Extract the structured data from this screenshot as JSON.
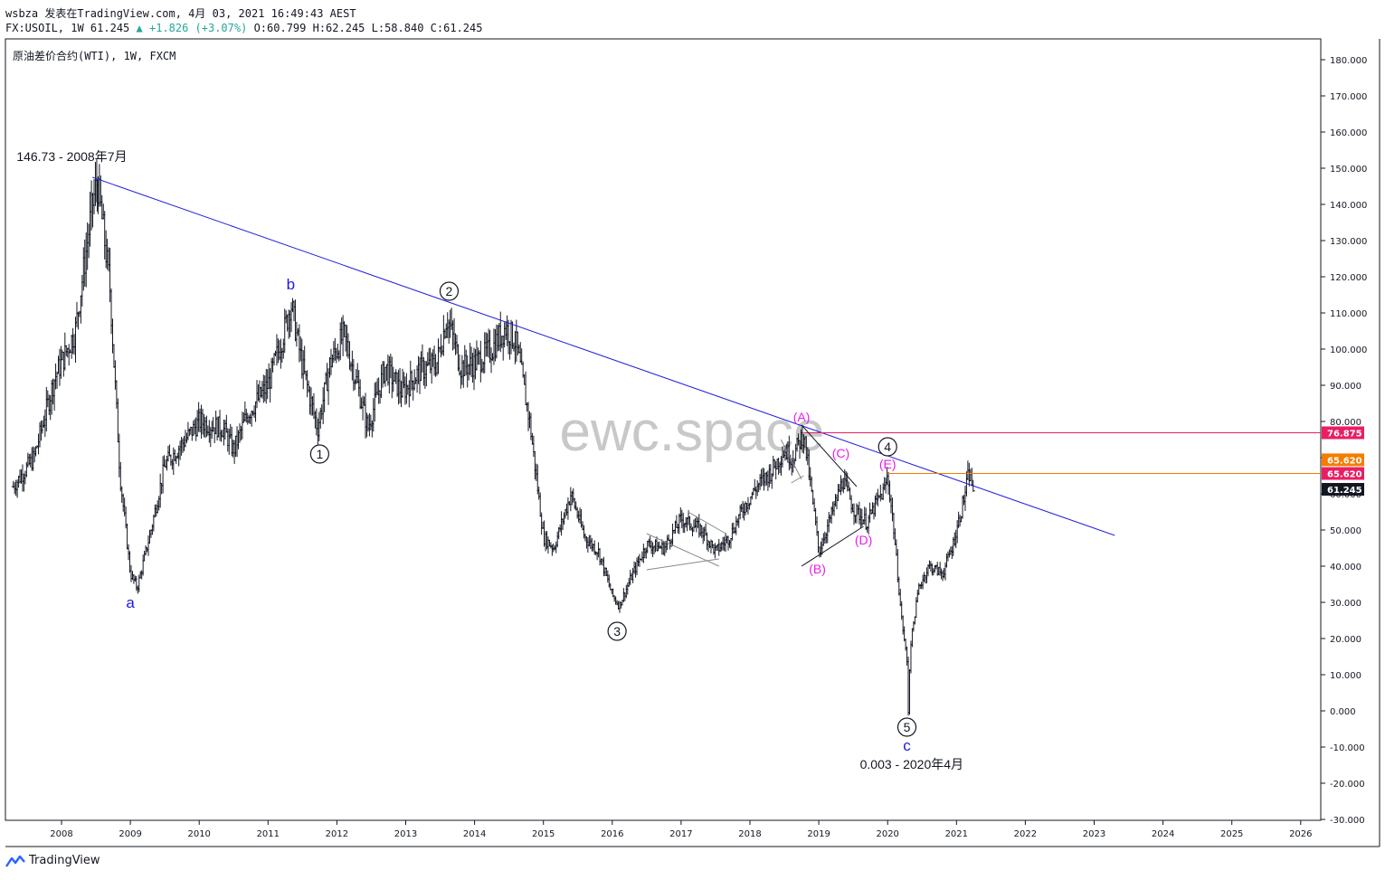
{
  "header": {
    "line1": "wsbza 发表在TradingView.com, 4月 03, 2021 16:49:43 AEST",
    "symbol": "FX:USOIL, 1W 61.245",
    "change": "▲ +1.826 (+3.07%)",
    "ohlc": "O:60.799 H:62.245 L:58.840 C:61.245"
  },
  "legend_title": "原油差价合约(WTI), 1W, FXCM",
  "watermark": "ewc.space",
  "brand": "TradingView",
  "colors": {
    "bar": "#131722",
    "trendline": "#2222dd",
    "wave_blue": "#1b1bd6",
    "wave_magenta": "#e91ee6",
    "hline_magenta": "#c2185b",
    "hline_orange": "#f57c00",
    "grey_lines": "#888888",
    "axis": "#131722"
  },
  "chart_data": {
    "type": "ohlc",
    "title": "原油差价合约(WTI), 1W, FXCM",
    "xlabel": "",
    "ylabel": "",
    "x_tick_labels": [
      "2008",
      "2009",
      "2010",
      "2011",
      "2012",
      "2013",
      "2014",
      "2015",
      "2016",
      "2017",
      "2018",
      "2019",
      "2020",
      "2021",
      "2022",
      "2023",
      "2024",
      "2025",
      "2026"
    ],
    "y_tick_labels": [
      "180.000",
      "170.000",
      "160.000",
      "150.000",
      "140.000",
      "130.000",
      "120.000",
      "110.000",
      "100.000",
      "90.000",
      "80.000",
      "70.000",
      "60.000",
      "50.000",
      "40.000",
      "30.000",
      "20.000",
      "10.000",
      "0.000",
      "-10.000",
      "-20.000",
      "-30.000"
    ],
    "ylim": [
      -30,
      180
    ],
    "xlim": [
      2007.3,
      2026.1
    ],
    "price_path": [
      [
        2007.3,
        62
      ],
      [
        2007.6,
        70
      ],
      [
        2007.9,
        92
      ],
      [
        2008.2,
        105
      ],
      [
        2008.45,
        140
      ],
      [
        2008.52,
        146.73
      ],
      [
        2008.7,
        118
      ],
      [
        2008.85,
        65
      ],
      [
        2009.0,
        38
      ],
      [
        2009.1,
        34
      ],
      [
        2009.3,
        50
      ],
      [
        2009.5,
        68
      ],
      [
        2009.8,
        75
      ],
      [
        2010.0,
        80
      ],
      [
        2010.35,
        78
      ],
      [
        2010.5,
        72
      ],
      [
        2010.7,
        82
      ],
      [
        2011.0,
        90
      ],
      [
        2011.25,
        106
      ],
      [
        2011.33,
        113
      ],
      [
        2011.5,
        95
      ],
      [
        2011.72,
        78
      ],
      [
        2011.9,
        96
      ],
      [
        2012.1,
        104
      ],
      [
        2012.3,
        90
      ],
      [
        2012.45,
        78
      ],
      [
        2012.7,
        95
      ],
      [
        2012.95,
        88
      ],
      [
        2013.2,
        94
      ],
      [
        2013.45,
        96
      ],
      [
        2013.6,
        109
      ],
      [
        2013.8,
        95
      ],
      [
        2014.0,
        96
      ],
      [
        2014.25,
        100
      ],
      [
        2014.45,
        106
      ],
      [
        2014.6,
        102
      ],
      [
        2014.8,
        80
      ],
      [
        2015.0,
        48
      ],
      [
        2015.15,
        45
      ],
      [
        2015.4,
        60
      ],
      [
        2015.6,
        48
      ],
      [
        2015.8,
        44
      ],
      [
        2016.0,
        32
      ],
      [
        2016.1,
        29
      ],
      [
        2016.3,
        38
      ],
      [
        2016.5,
        46
      ],
      [
        2016.75,
        45
      ],
      [
        2017.0,
        53
      ],
      [
        2017.3,
        50
      ],
      [
        2017.5,
        44
      ],
      [
        2017.7,
        48
      ],
      [
        2017.9,
        56
      ],
      [
        2018.1,
        62
      ],
      [
        2018.3,
        66
      ],
      [
        2018.5,
        72
      ],
      [
        2018.62,
        70
      ],
      [
        2018.78,
        76.88
      ],
      [
        2018.95,
        52
      ],
      [
        2019.0,
        44
      ],
      [
        2019.2,
        55
      ],
      [
        2019.35,
        64
      ],
      [
        2019.5,
        56
      ],
      [
        2019.7,
        52
      ],
      [
        2019.85,
        58
      ],
      [
        2019.95,
        61
      ],
      [
        2020.0,
        65
      ],
      [
        2020.08,
        52
      ],
      [
        2020.2,
        26
      ],
      [
        2020.28,
        14
      ],
      [
        2020.3,
        0.003
      ],
      [
        2020.33,
        18
      ],
      [
        2020.45,
        34
      ],
      [
        2020.6,
        40
      ],
      [
        2020.8,
        38
      ],
      [
        2020.95,
        46
      ],
      [
        2021.1,
        58
      ],
      [
        2021.18,
        65.62
      ],
      [
        2021.25,
        61.245
      ]
    ],
    "trendline": {
      "from": [
        2008.45,
        147.5
      ],
      "to": [
        2023.3,
        48.5
      ]
    },
    "horizontal_lines": [
      {
        "price": 76.875,
        "from_x": 2018.78,
        "label": "76.875",
        "color": "#e91e63"
      },
      {
        "price": 65.62,
        "from_x": 2020.0,
        "label": "65.620",
        "color": "#f57c00"
      }
    ],
    "price_labels": [
      {
        "label": "76.875",
        "price": 76.875,
        "color": "#e91e63"
      },
      {
        "label": "65.620",
        "price": 69.4,
        "color": "#f57c00"
      },
      {
        "label": "65.620",
        "price": 65.62,
        "color": "#e91e63"
      },
      {
        "label": "61.245",
        "price": 61.245,
        "color": "#131722"
      }
    ],
    "grey_lines": [
      [
        [
          2016.5,
          49
        ],
        [
          2017.55,
          40
        ]
      ],
      [
        [
          2016.5,
          39
        ],
        [
          2017.55,
          42
        ]
      ],
      [
        [
          2017.1,
          55
        ],
        [
          2017.65,
          49
        ]
      ],
      [
        [
          2018.45,
          75
        ],
        [
          2018.75,
          64
        ]
      ],
      [
        [
          2018.6,
          63
        ],
        [
          2018.78,
          65
        ]
      ]
    ],
    "black_lines": [
      [
        [
          2018.75,
          79
        ],
        [
          2019.55,
          62
        ]
      ],
      [
        [
          2018.75,
          40
        ],
        [
          2019.65,
          51
        ]
      ]
    ],
    "circled_waves": [
      {
        "label": "1",
        "x": 2011.75,
        "y": 71
      },
      {
        "label": "2",
        "x": 2013.63,
        "y": 116
      },
      {
        "label": "3",
        "x": 2016.07,
        "y": 22
      },
      {
        "label": "4",
        "x": 2020.0,
        "y": 73
      },
      {
        "label": "5",
        "x": 2020.28,
        "y": -4.5
      }
    ],
    "wave_letters": [
      {
        "label": "a",
        "x": 2009.0,
        "y": 28.5,
        "color": "#1b1bd6"
      },
      {
        "label": "b",
        "x": 2011.33,
        "y": 116.5,
        "color": "#1b1bd6"
      },
      {
        "label": "c",
        "x": 2020.28,
        "y": -11,
        "color": "#1b1bd6"
      }
    ],
    "triangle_labels": [
      {
        "label": "(A)",
        "x": 2018.75,
        "y": 80,
        "color": "#e91ee6"
      },
      {
        "label": "(B)",
        "x": 2018.98,
        "y": 38,
        "color": "#e91ee6"
      },
      {
        "label": "(C)",
        "x": 2019.32,
        "y": 70,
        "color": "#e91ee6"
      },
      {
        "label": "(D)",
        "x": 2019.65,
        "y": 46,
        "color": "#e91ee6"
      },
      {
        "label": "(E)",
        "x": 2020.0,
        "y": 67,
        "color": "#e91ee6"
      }
    ],
    "annotations": [
      {
        "text": "146.73 - 2008年7月",
        "x": 2008.15,
        "y": 152
      },
      {
        "text": "0.003 - 2020年4月",
        "x": 2020.35,
        "y": -16
      }
    ]
  }
}
